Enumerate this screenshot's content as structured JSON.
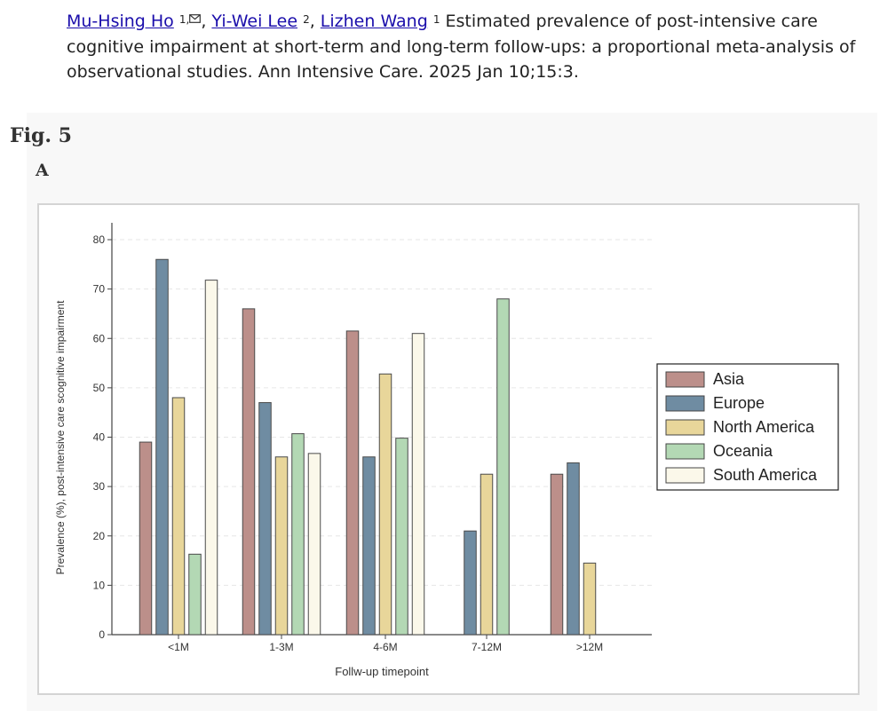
{
  "citation": {
    "authors": [
      {
        "name": "Mu-Hsing Ho",
        "sup": "1,"
      },
      {
        "name": "Yi-Wei Lee",
        "sup": "2"
      },
      {
        "name": "Lizhen Wang",
        "sup": "1"
      }
    ],
    "separator": ",",
    "text": "Estimated prevalence of post-intensive care cognitive impairment at short-term and long-term follow-ups: a proportional meta-analysis of observational studies. Ann Intensive Care. 2025 Jan 10;15:3."
  },
  "figure": {
    "label": "Fig. 5",
    "panel": "A"
  },
  "chart_data": {
    "type": "bar",
    "categories": [
      "<1M",
      "1-3M",
      "4-6M",
      "7-12M",
      ">12M"
    ],
    "xlabel": "Follw-up timepoint",
    "ylabel": "Prevalence (%), post-intensive care scognitive impairment",
    "ylim": [
      0,
      80
    ],
    "yticks": [
      0,
      10,
      20,
      30,
      40,
      50,
      60,
      70,
      80
    ],
    "legend_position": "right",
    "grid": true,
    "series": [
      {
        "name": "Asia",
        "color": "#bc8f8a",
        "values": [
          39,
          66,
          61.5,
          null,
          32.5
        ]
      },
      {
        "name": "Europe",
        "color": "#6f8ca2",
        "values": [
          76,
          47,
          36,
          21,
          34.8
        ]
      },
      {
        "name": "North America",
        "color": "#e8d69a",
        "values": [
          48,
          36,
          52.8,
          32.5,
          14.5
        ]
      },
      {
        "name": "Oceania",
        "color": "#b3d8b4",
        "values": [
          16.3,
          40.7,
          39.8,
          68,
          null
        ]
      },
      {
        "name": "South America",
        "color": "#fbf8ea",
        "values": [
          71.8,
          36.7,
          61,
          null,
          null
        ]
      }
    ]
  }
}
